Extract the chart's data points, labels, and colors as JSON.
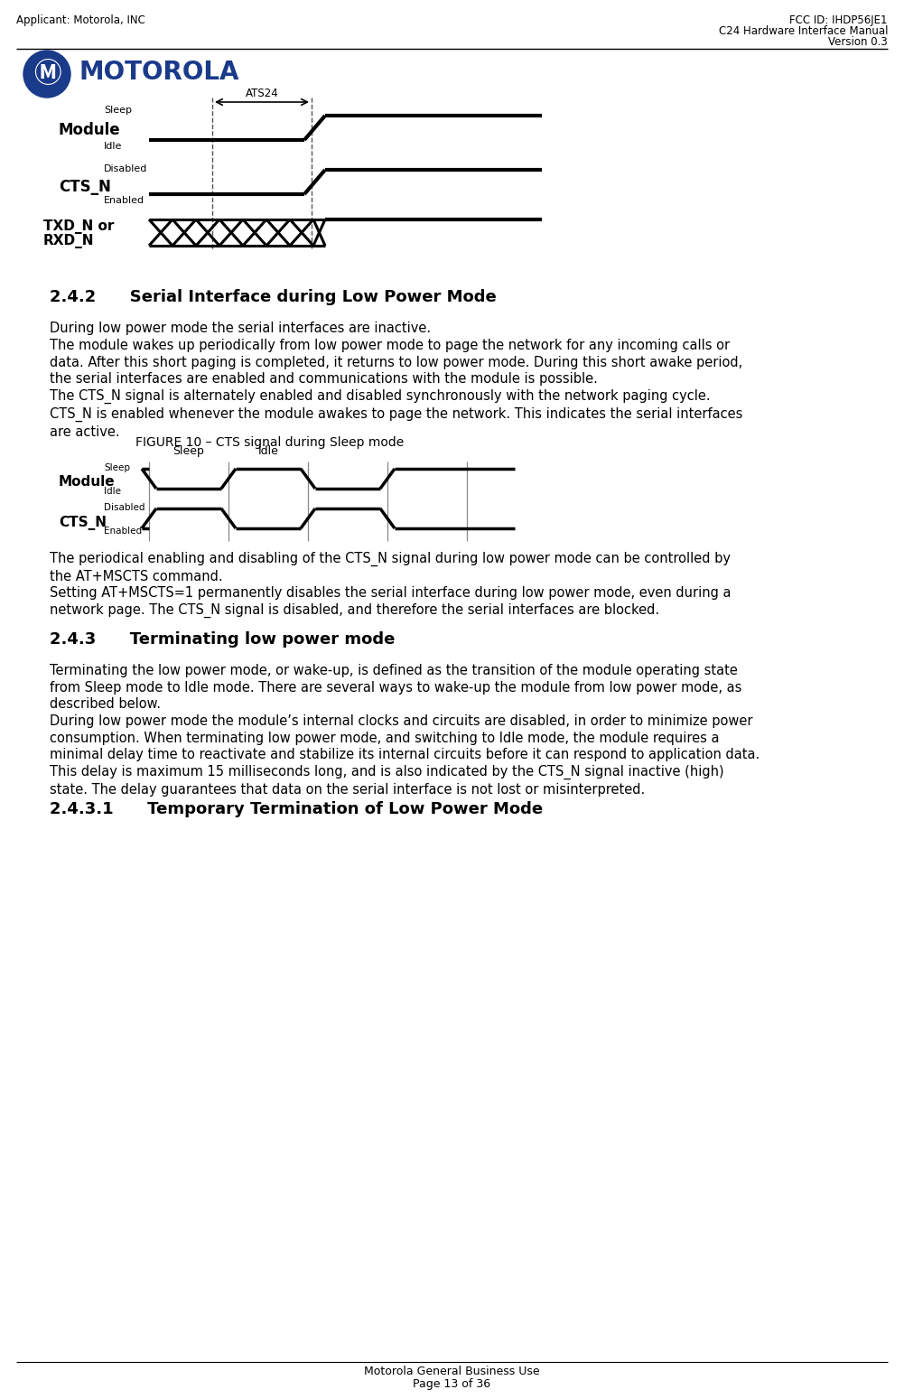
{
  "page_header_left": "Applicant: Motorola, INC",
  "page_header_right_line1": "FCC ID: IHDP56JE1",
  "page_header_right_line2": "C24 Hardware Interface Manual",
  "page_header_right_line3": "Version 0.3",
  "motorola_text": "MOTOROLA",
  "section_242_title": "2.4.2      Serial Interface during Low Power Mode",
  "section_242_body_1": "During low power mode the serial interfaces are inactive.",
  "section_242_body_2": "The module wakes up periodically from low power mode to page the network for any incoming calls or\ndata. After this short paging is completed, it returns to low power mode. During this short awake period,\nthe serial interfaces are enabled and communications with the module is possible.",
  "section_242_body_3": "The CTS_N signal is alternately enabled and disabled synchronously with the network paging cycle.\nCTS_N is enabled whenever the module awakes to page the network. This indicates the serial interfaces\nare active.",
  "figure10_caption": "FIGURE 10 – CTS signal during Sleep mode",
  "figure10_body_1": "The periodical enabling and disabling of the CTS_N signal during low power mode can be controlled by\nthe AT+MSCTS command.",
  "figure10_body_2": "Setting AT+MSCTS=1 permanently disables the serial interface during low power mode, even during a\nnetwork page. The CTS_N signal is disabled, and therefore the serial interfaces are blocked.",
  "section_243_title": "2.4.3      Terminating low power mode",
  "section_243_body_1": "Terminating the low power mode, or wake-up, is defined as the transition of the module operating state\nfrom Sleep mode to Idle mode. There are several ways to wake-up the module from low power mode, as\ndescribed below.",
  "section_243_body_2": "During low power mode the module’s internal clocks and circuits are disabled, in order to minimize power\nconsumption. When terminating low power mode, and switching to Idle mode, the module requires a\nminimal delay time to reactivate and stabilize its internal circuits before it can respond to application data.\nThis delay is maximum 15 milliseconds long, and is also indicated by the CTS_N signal inactive (high)\nstate. The delay guarantees that data on the serial interface is not lost or misinterpreted.",
  "section_2431_title": "2.4.3.1      Temporary Termination of Low Power Mode",
  "page_footer_line1": "Motorola General Business Use",
  "page_footer_line2": "Page 13 of 36",
  "bg_color": "#ffffff",
  "text_color": "#000000"
}
